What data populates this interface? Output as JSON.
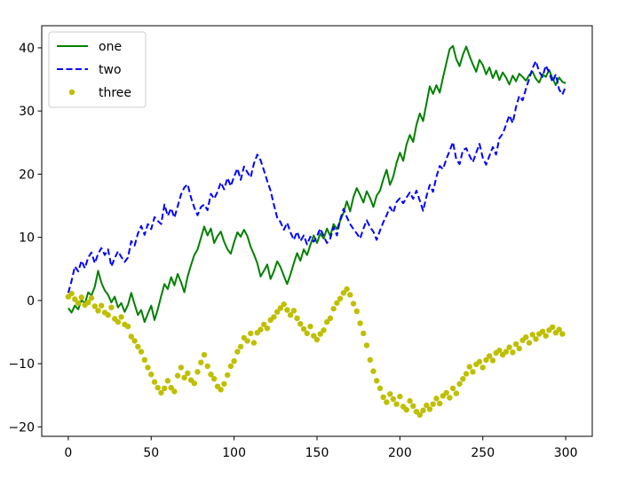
{
  "chart_data": {
    "type": "line",
    "xlim": [
      -16,
      316
    ],
    "ylim": [
      -21.5,
      43.5
    ],
    "x_ticks": [
      0,
      50,
      100,
      150,
      200,
      250,
      300
    ],
    "y_ticks": [
      -20,
      -10,
      0,
      10,
      20,
      30,
      40
    ],
    "x_tick_labels": [
      "0",
      "50",
      "100",
      "150",
      "200",
      "250",
      "300"
    ],
    "y_tick_labels": [
      "−20",
      "−10",
      "0",
      "10",
      "20",
      "30",
      "40"
    ],
    "legend_placement": "top-left",
    "grid": false,
    "x_step": 2,
    "series": [
      {
        "name": "one",
        "style": "solid",
        "marker": "none",
        "color": "#008000",
        "y": [
          -1.2,
          -1.9,
          -0.8,
          -1.4,
          0.1,
          -0.5,
          1.3,
          0.8,
          2.2,
          4.7,
          2.8,
          1.6,
          0.9,
          -0.3,
          0.6,
          -1.1,
          -0.4,
          -1.8,
          -0.7,
          1.2,
          -0.6,
          -2.3,
          -1.5,
          -3.4,
          -2.1,
          -0.8,
          -3.1,
          -1.4,
          0.7,
          2.6,
          1.8,
          3.7,
          2.4,
          4.2,
          2.9,
          1.3,
          3.8,
          5.6,
          7.2,
          8.1,
          9.9,
          11.7,
          10.3,
          11.4,
          9.1,
          10.2,
          10.9,
          9.3,
          8.1,
          7.4,
          9.2,
          10.8,
          10.1,
          11.2,
          10.2,
          8.5,
          7.3,
          5.9,
          3.8,
          4.7,
          5.7,
          3.4,
          4.6,
          6.2,
          5.3,
          3.9,
          2.6,
          4.1,
          5.9,
          7.5,
          6.3,
          8.1,
          7.2,
          8.8,
          10.3,
          9.1,
          10.6,
          9.8,
          11.4,
          10.2,
          12.1,
          11.3,
          12.6,
          13.9,
          15.7,
          14.1,
          16.4,
          17.8,
          16.7,
          15.5,
          17.3,
          16.2,
          14.8,
          16.6,
          17.4,
          19.2,
          20.7,
          18.3,
          19.6,
          21.8,
          23.4,
          22.1,
          24.7,
          26.2,
          25.1,
          27.8,
          29.6,
          28.4,
          31.2,
          33.9,
          32.7,
          34.1,
          32.9,
          35.3,
          37.6,
          39.8,
          40.3,
          38.2,
          37.1,
          38.9,
          40.2,
          38.7,
          37.4,
          36.2,
          38.1,
          37.3,
          35.8,
          36.9,
          35.2,
          36.4,
          34.9,
          36.1,
          35.3,
          34.2,
          35.6,
          34.7,
          35.9,
          35.4,
          34.8,
          35.7,
          36.2,
          35.1,
          34.5,
          35.8,
          35.4,
          36.5,
          35.2,
          34.1,
          35.3,
          34.6,
          34.4
        ]
      },
      {
        "name": "two",
        "style": "dashed",
        "marker": "none",
        "color": "#0000ff",
        "y": [
          1.2,
          3.1,
          5.4,
          4.6,
          6.3,
          5.1,
          6.8,
          7.6,
          5.9,
          7.4,
          8.3,
          7.2,
          8.1,
          5.4,
          6.7,
          7.8,
          6.9,
          6.1,
          6.8,
          9.4,
          8.7,
          10.6,
          11.8,
          10.4,
          12.1,
          11.3,
          13.2,
          12.6,
          12.1,
          15.2,
          13.4,
          14.6,
          13.1,
          14.9,
          16.8,
          17.9,
          18.4,
          16.3,
          14.7,
          13.5,
          14.8,
          15.2,
          14.3,
          16.9,
          16.1,
          17.2,
          18.7,
          17.6,
          19.4,
          18.1,
          19.6,
          20.9,
          19.1,
          21.2,
          20.3,
          19.5,
          21.7,
          23.1,
          22.2,
          20.6,
          18.9,
          17.4,
          15.2,
          13.1,
          12.4,
          11.2,
          12.3,
          10.8,
          9.6,
          10.9,
          9.4,
          10.3,
          8.9,
          10.1,
          9.3,
          10.2,
          11.4,
          10.2,
          9.1,
          9.8,
          11.6,
          10.3,
          12.8,
          14.5,
          13.2,
          12.1,
          11.3,
          10.6,
          9.8,
          11.4,
          12.7,
          11.6,
          10.9,
          9.6,
          11.1,
          12.4,
          13.5,
          14.8,
          13.9,
          15.6,
          16.2,
          15.4,
          16.3,
          17.1,
          16.1,
          17.4,
          15.8,
          14.2,
          16.5,
          18.3,
          17.2,
          19.6,
          21.3,
          20.8,
          22.4,
          23.7,
          25.1,
          22.3,
          21.6,
          23.8,
          24.1,
          22.9,
          21.9,
          23.4,
          24.8,
          22.6,
          21.5,
          22.9,
          24.3,
          23.1,
          25.7,
          26.4,
          27.8,
          29.3,
          28.1,
          30.6,
          32.4,
          31.7,
          33.5,
          35.1,
          36.8,
          37.9,
          36.2,
          35.4,
          37.2,
          36.1,
          34.6,
          35.8,
          33.4,
          32.6,
          33.9
        ]
      },
      {
        "name": "three",
        "style": "none",
        "marker": "dot",
        "color": "#bfbf00",
        "y": [
          0.6,
          1.1,
          0.2,
          -0.4,
          0.5,
          -0.7,
          -0.3,
          0.4,
          -0.9,
          -1.6,
          -0.8,
          -1.9,
          -2.3,
          -1.1,
          -2.9,
          -3.4,
          -2.6,
          -3.8,
          -4.1,
          -5.7,
          -6.4,
          -7.3,
          -8.1,
          -9.4,
          -10.6,
          -11.7,
          -12.9,
          -13.8,
          -14.6,
          -13.9,
          -12.7,
          -13.8,
          -14.4,
          -11.9,
          -10.6,
          -12.2,
          -11.5,
          -12.6,
          -13.1,
          -11.3,
          -9.8,
          -8.6,
          -10.4,
          -11.7,
          -12.4,
          -13.6,
          -14.1,
          -13.2,
          -11.8,
          -10.4,
          -9.6,
          -8.1,
          -7.3,
          -5.9,
          -6.4,
          -5.2,
          -6.7,
          -5.1,
          -4.6,
          -3.8,
          -4.4,
          -3.1,
          -2.6,
          -1.8,
          -1.2,
          -0.6,
          -1.5,
          -2.3,
          -1.6,
          -2.8,
          -3.7,
          -4.5,
          -5.2,
          -4.1,
          -5.6,
          -6.2,
          -5.3,
          -4.7,
          -3.4,
          -2.8,
          -1.3,
          -0.4,
          0.3,
          1.2,
          1.8,
          0.9,
          -0.5,
          -1.7,
          -3.6,
          -5.2,
          -7.1,
          -9.4,
          -11.2,
          -12.7,
          -13.9,
          -15.3,
          -16.1,
          -14.8,
          -15.6,
          -16.4,
          -15.2,
          -16.8,
          -17.3,
          -15.9,
          -16.7,
          -17.6,
          -18.1,
          -17.4,
          -16.6,
          -17.2,
          -16.4,
          -15.5,
          -16.3,
          -15.1,
          -14.6,
          -15.4,
          -13.9,
          -14.7,
          -13.2,
          -12.4,
          -11.6,
          -10.5,
          -11.3,
          -10.1,
          -9.7,
          -10.6,
          -9.4,
          -8.8,
          -9.5,
          -8.3,
          -7.9,
          -8.6,
          -8.1,
          -7.4,
          -8.2,
          -6.9,
          -7.6,
          -6.3,
          -5.8,
          -6.7,
          -5.4,
          -6.1,
          -5.3,
          -4.9,
          -5.6,
          -4.7,
          -4.2,
          -5.1,
          -4.6,
          -5.3
        ]
      }
    ]
  }
}
